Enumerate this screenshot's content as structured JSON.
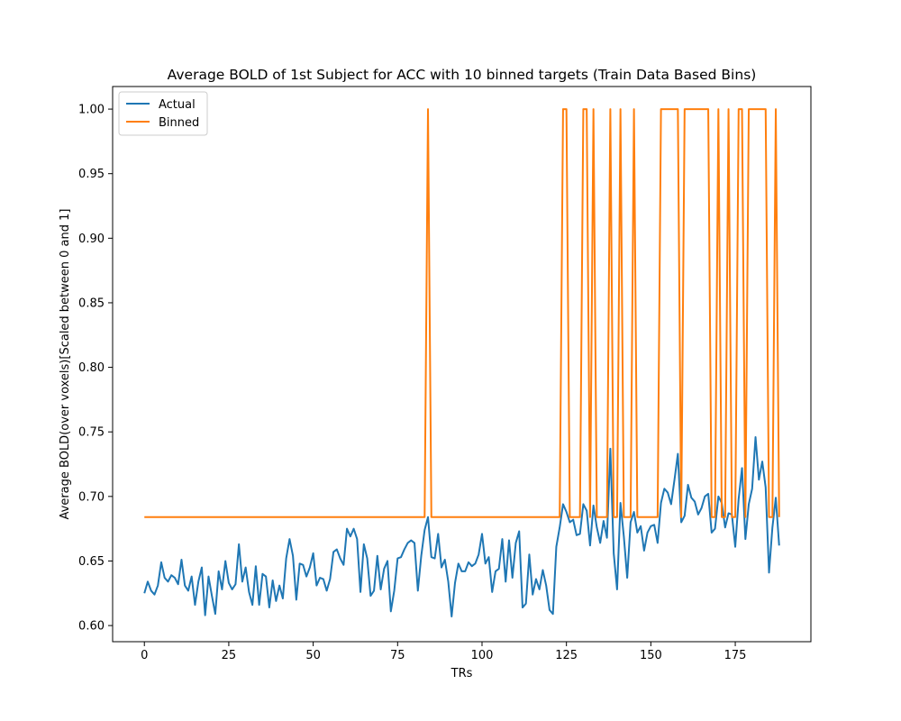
{
  "chart_data": {
    "type": "line",
    "title": "Average BOLD of 1st Subject for ACC with 10 binned targets (Train Data Based Bins)",
    "xlabel": "TRs",
    "ylabel": "Average BOLD(over voxels)[Scaled between 0 and 1]",
    "xlim": [
      -9.4,
      197.4
    ],
    "ylim": [
      0.5875,
      1.0175
    ],
    "xticks": [
      0,
      25,
      50,
      75,
      100,
      125,
      150,
      175
    ],
    "xtick_labels": [
      "0",
      "25",
      "50",
      "75",
      "100",
      "125",
      "150",
      "175"
    ],
    "yticks": [
      0.6,
      0.65,
      0.7,
      0.75,
      0.8,
      0.85,
      0.9,
      0.95,
      1.0
    ],
    "ytick_labels": [
      "0.60",
      "0.65",
      "0.70",
      "0.75",
      "0.80",
      "0.85",
      "0.90",
      "0.95",
      "1.00"
    ],
    "legend": "top-left",
    "grid": false,
    "series": [
      {
        "name": "Actual",
        "color": "#1f77b4",
        "values": [
          0.625,
          0.634,
          0.627,
          0.624,
          0.631,
          0.649,
          0.637,
          0.634,
          0.639,
          0.637,
          0.632,
          0.651,
          0.631,
          0.627,
          0.638,
          0.616,
          0.634,
          0.645,
          0.608,
          0.638,
          0.623,
          0.609,
          0.642,
          0.628,
          0.65,
          0.633,
          0.628,
          0.632,
          0.663,
          0.634,
          0.645,
          0.626,
          0.616,
          0.646,
          0.616,
          0.64,
          0.638,
          0.614,
          0.635,
          0.619,
          0.631,
          0.621,
          0.652,
          0.667,
          0.654,
          0.62,
          0.648,
          0.647,
          0.638,
          0.645,
          0.656,
          0.631,
          0.637,
          0.636,
          0.627,
          0.636,
          0.657,
          0.659,
          0.652,
          0.647,
          0.675,
          0.669,
          0.675,
          0.667,
          0.626,
          0.663,
          0.652,
          0.623,
          0.627,
          0.654,
          0.628,
          0.644,
          0.65,
          0.611,
          0.627,
          0.652,
          0.653,
          0.659,
          0.664,
          0.666,
          0.664,
          0.627,
          0.654,
          0.674,
          0.684,
          0.653,
          0.652,
          0.671,
          0.645,
          0.651,
          0.634,
          0.607,
          0.633,
          0.648,
          0.642,
          0.642,
          0.649,
          0.646,
          0.648,
          0.655,
          0.671,
          0.648,
          0.653,
          0.626,
          0.642,
          0.644,
          0.667,
          0.634,
          0.666,
          0.637,
          0.664,
          0.673,
          0.614,
          0.617,
          0.655,
          0.624,
          0.636,
          0.628,
          0.643,
          0.631,
          0.612,
          0.609,
          0.661,
          0.676,
          0.694,
          0.688,
          0.68,
          0.682,
          0.67,
          0.671,
          0.694,
          0.689,
          0.662,
          0.693,
          0.676,
          0.664,
          0.681,
          0.668,
          0.737,
          0.656,
          0.628,
          0.695,
          0.669,
          0.637,
          0.68,
          0.688,
          0.672,
          0.677,
          0.658,
          0.672,
          0.677,
          0.678,
          0.664,
          0.695,
          0.706,
          0.703,
          0.694,
          0.713,
          0.733,
          0.68,
          0.685,
          0.709,
          0.699,
          0.696,
          0.686,
          0.691,
          0.7,
          0.702,
          0.672,
          0.675,
          0.7,
          0.695,
          0.676,
          0.687,
          0.686,
          0.661,
          0.698,
          0.722,
          0.667,
          0.694,
          0.706,
          0.746,
          0.713,
          0.727,
          0.707,
          0.641,
          0.676,
          0.699,
          0.662
        ]
      },
      {
        "name": "Binned",
        "color": "#ff7f0e",
        "base": 0.684,
        "high": 1.0,
        "high_x": [
          84,
          124,
          125,
          130,
          131,
          133,
          138,
          141,
          145,
          153,
          154,
          155,
          156,
          157,
          158,
          160,
          161,
          162,
          163,
          164,
          165,
          166,
          167,
          170,
          173,
          176,
          177,
          179,
          180,
          181,
          182,
          183,
          184,
          187
        ]
      }
    ]
  }
}
